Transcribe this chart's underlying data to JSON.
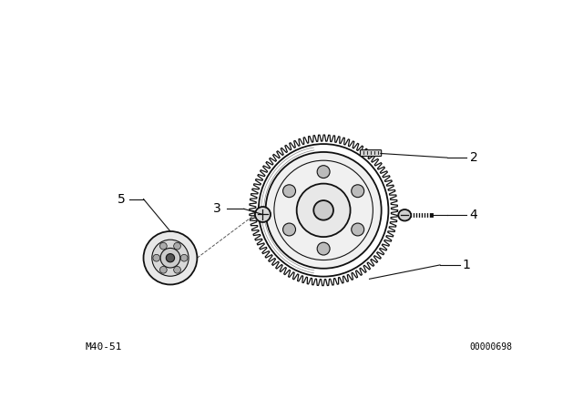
{
  "bg_color": "#ffffff",
  "line_color": "#111111",
  "label_color": "#000000",
  "bottom_left_text": "M40-51",
  "bottom_right_text": "00000698",
  "fig_width": 6.4,
  "fig_height": 4.48,
  "dpi": 100
}
